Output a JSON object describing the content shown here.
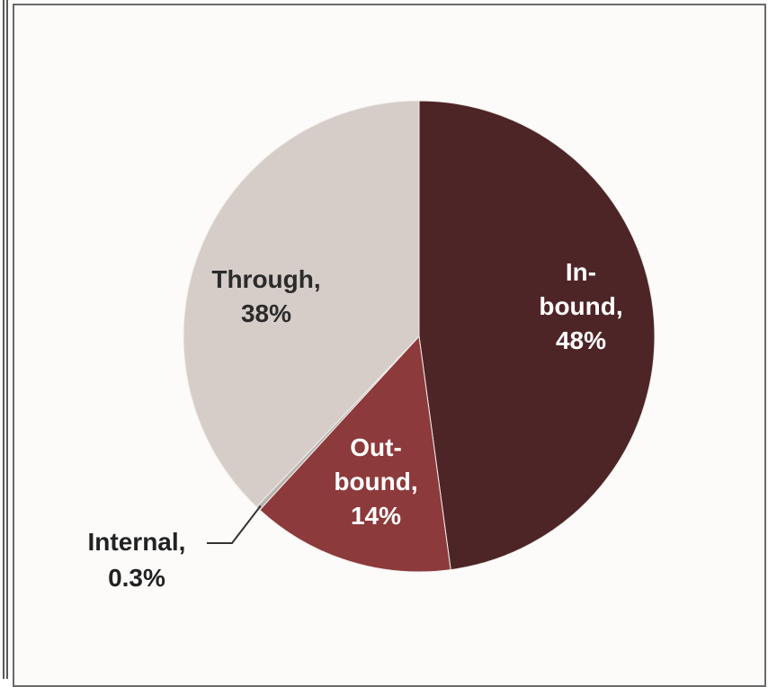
{
  "chart_data": {
    "type": "pie",
    "title": "",
    "slices": [
      {
        "label_lines": [
          "In-",
          "bound,",
          "48%"
        ],
        "name": "In-bound",
        "value": 48,
        "color": "#4e2527",
        "label_color": "#ffffff"
      },
      {
        "label_lines": [
          "Out-",
          "bound,",
          "14%"
        ],
        "name": "Out-bound",
        "value": 14,
        "color": "#8c3a3b",
        "label_color": "#ffffff"
      },
      {
        "label_lines": [
          "Internal,",
          "0.3%"
        ],
        "name": "Internal",
        "value": 0.3,
        "color": "#b9b4b0",
        "label_color": "#222222"
      },
      {
        "label_lines": [
          "Through,",
          "38%"
        ],
        "name": "Through",
        "value": 38,
        "color": "#d6cdc8",
        "label_color": "#2b2b2b"
      }
    ],
    "start_angle_deg": 0,
    "direction": "clockwise",
    "legend": "none"
  }
}
